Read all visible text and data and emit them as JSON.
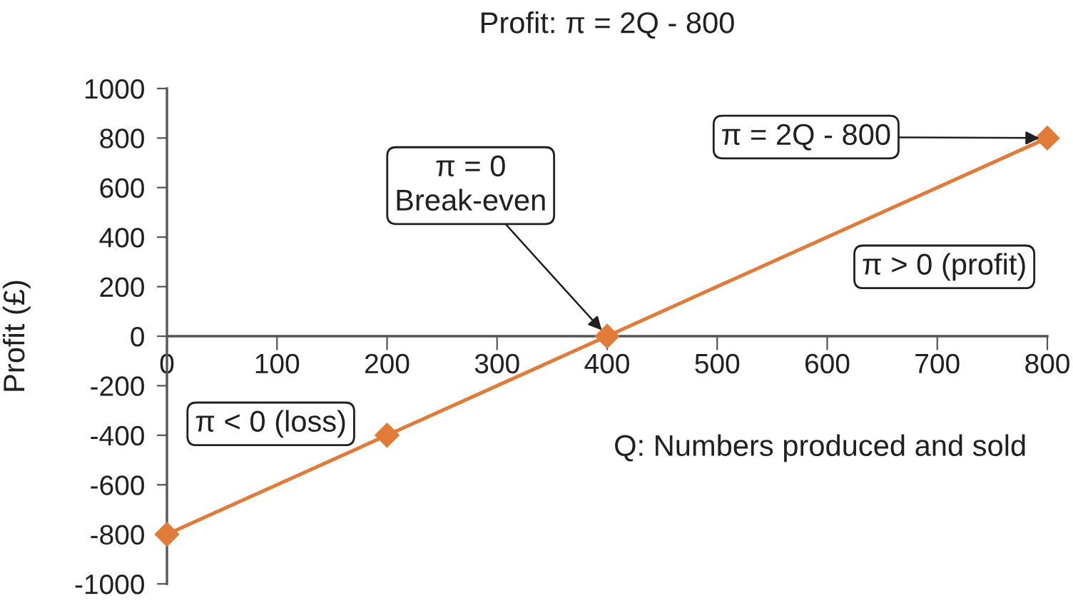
{
  "chart_data": {
    "type": "line",
    "title": "Profit: π = 2Q - 800",
    "xlabel": "Q: Numbers produced and sold",
    "ylabel": "Profit (£)",
    "x": [
      0,
      200,
      400,
      800
    ],
    "series": [
      {
        "color": "#e07b39",
        "values": [
          -800,
          -400,
          0,
          800
        ]
      }
    ],
    "xlim": [
      0,
      800
    ],
    "ylim": [
      -1000,
      1000
    ],
    "xticks": [
      0,
      100,
      200,
      300,
      400,
      500,
      600,
      700,
      800
    ],
    "yticks": [
      -1000,
      -800,
      -600,
      -400,
      -200,
      0,
      200,
      400,
      600,
      800,
      1000
    ],
    "marker": "diamond",
    "line_style": "solid",
    "grid": false,
    "annotations": [
      {
        "text": "π = 0\nBreak-even",
        "x": 400,
        "y": 0
      },
      {
        "text": "π = 2Q - 800",
        "x": 800,
        "y": 800
      },
      "π > 0 (profit)",
      "π < 0 (loss)"
    ]
  }
}
